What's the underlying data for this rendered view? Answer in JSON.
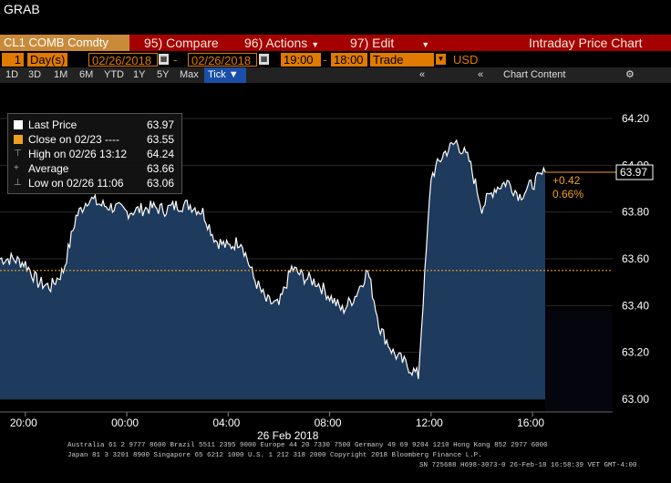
{
  "window": {
    "title": "GRAB"
  },
  "toolbar": {
    "ticker": "CL1 COMB Comdty",
    "compare": "95) Compare",
    "actions": "96) Actions",
    "edit": "97) Edit",
    "chart_title": "Intraday Price Chart"
  },
  "range_bar": {
    "period_count": "1",
    "period_unit": "Day(s)",
    "start_date": "02/26/2018",
    "end_date": "02/26/2018",
    "start_time": "19:00",
    "end_time": "18:00",
    "market": "Trade",
    "currency": "USD"
  },
  "timeframe_bar": {
    "buttons": [
      "1D",
      "3D",
      "1M",
      "6M",
      "YTD",
      "1Y",
      "5Y",
      "Max"
    ],
    "selected": "Tick ▼",
    "chart_content": "Chart Content"
  },
  "legend": {
    "items": [
      {
        "name": "Last Price",
        "value": "63.97",
        "color": "#ffffff"
      },
      {
        "name": "Close on 02/23 ----",
        "value": "63.55",
        "color": "#f0a020"
      },
      {
        "name": "High on 02/26 13:12",
        "value": "64.24",
        "color": ""
      },
      {
        "name": "Average",
        "value": "63.66",
        "color": ""
      },
      {
        "name": "Low on 02/26 11:06",
        "value": "63.06",
        "color": ""
      }
    ]
  },
  "price_tag": {
    "last": "63.97",
    "change": "+0.42",
    "change_pct": "0.66%"
  },
  "colors": {
    "accent": "#e07a00",
    "menu_bar": "#a50000",
    "area_fill": "#1e3a5c",
    "close_line": "#f0a020"
  },
  "chart_data": {
    "type": "line",
    "x": [
      "19:00",
      "19:30",
      "20:00",
      "20:30",
      "21:00",
      "21:30",
      "22:00",
      "22:30",
      "23:00",
      "23:30",
      "00:00",
      "00:30",
      "01:00",
      "01:30",
      "02:00",
      "02:30",
      "03:00",
      "03:30",
      "04:00",
      "04:30",
      "05:00",
      "05:30",
      "06:00",
      "06:30",
      "07:00",
      "07:30",
      "08:00",
      "08:30",
      "09:00",
      "09:30",
      "10:00",
      "10:30",
      "11:00",
      "11:30",
      "12:00",
      "12:30",
      "13:00",
      "13:30",
      "14:00",
      "14:30",
      "15:00",
      "15:30",
      "16:00",
      "16:30"
    ],
    "series": [
      {
        "values": [
          63.6,
          63.6,
          63.58,
          63.5,
          63.48,
          63.55,
          63.78,
          63.86,
          63.83,
          63.82,
          63.8,
          63.81,
          63.82,
          63.81,
          63.83,
          63.83,
          63.8,
          63.68,
          63.65,
          63.68,
          63.52,
          63.42,
          63.4,
          63.56,
          63.52,
          63.5,
          63.44,
          63.38,
          63.44,
          63.55,
          63.3,
          63.2,
          63.15,
          63.1,
          63.95,
          64.05,
          64.1,
          64.02,
          63.82,
          63.9,
          63.93,
          63.87,
          63.92,
          63.97
        ]
      }
    ],
    "close_line": 63.55,
    "title": "",
    "xlabel": "",
    "ylabel": "",
    "ylim": [
      63.0,
      64.2
    ],
    "y_ticks": [
      "64.20",
      "64.00",
      "63.80",
      "63.60",
      "63.40",
      "63.20",
      "63.00"
    ],
    "x_tick_labels": [
      "20:00",
      "00:00",
      "04:00",
      "08:00",
      "12:00",
      "16:00"
    ],
    "date_label": "26 Feb 2018",
    "grid": true
  },
  "footer": {
    "line1": "Australia 61 2 9777 8600 Brazil 5511 2395 9000 Europe 44 20 7330 7500 Germany 49 69 9204 1210 Hong Kong 852 2977 6000",
    "line2": "Japan 81 3 3201 8900      Singapore 65 6212 1000      U.S. 1 212 318 2000            Copyright 2018 Bloomberg Finance L.P.",
    "line3": "SN 725688 H698-3073-0 26-Feb-18 16:58:39 VET  GMT-4:00"
  }
}
